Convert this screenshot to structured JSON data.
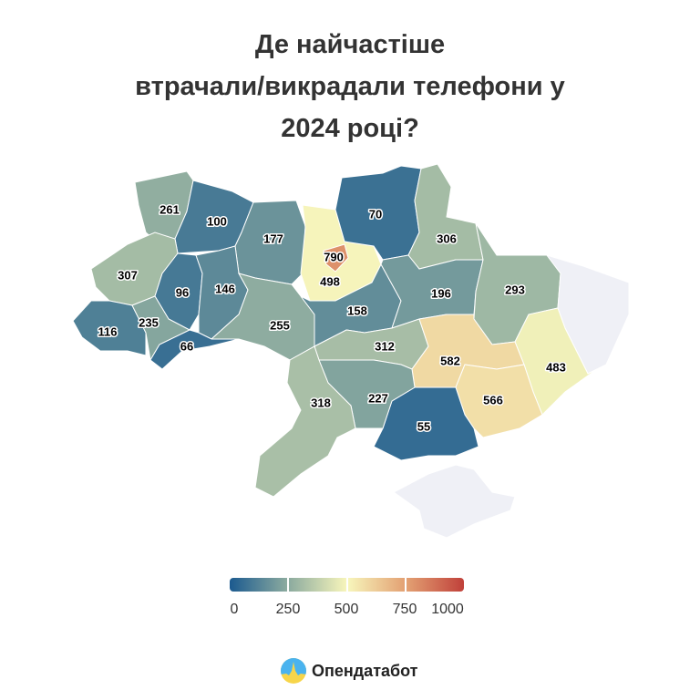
{
  "title": "Де найчастіше втрачали/викрадали телефони у 2024 році?",
  "title_lines": [
    "Де найчастіше",
    "втрачали/викрадали телефони у",
    "2024 році?"
  ],
  "scale": {
    "stops": [
      0,
      250,
      500,
      750,
      1000
    ],
    "colors": [
      "#1b5a8f",
      "#8cab9f",
      "#f7f5bb",
      "#e3a173",
      "#c0403a"
    ],
    "tick_labels": [
      "0",
      "250",
      "500",
      "750",
      "1000"
    ],
    "no_data_color": "#eff0f6"
  },
  "regions": [
    {
      "value": 261
    },
    {
      "value": 100
    },
    {
      "value": 177
    },
    {
      "value": 498
    },
    {
      "value": 790
    },
    {
      "value": 70
    },
    {
      "value": 306
    },
    {
      "value": 307
    },
    {
      "value": 96
    },
    {
      "value": 146
    },
    {
      "value": 255
    },
    {
      "value": 158
    },
    {
      "value": 196
    },
    {
      "value": 293
    },
    {
      "value": null
    },
    {
      "value": 483
    },
    {
      "value": 116
    },
    {
      "value": 235
    },
    {
      "value": 66
    },
    {
      "value": 312
    },
    {
      "value": 582
    },
    {
      "value": 566
    },
    {
      "value": 55
    },
    {
      "value": 227
    },
    {
      "value": 318
    },
    {
      "value": null
    }
  ],
  "brand": {
    "name": "Опендатабот",
    "icon": "opendatabot-logo"
  }
}
